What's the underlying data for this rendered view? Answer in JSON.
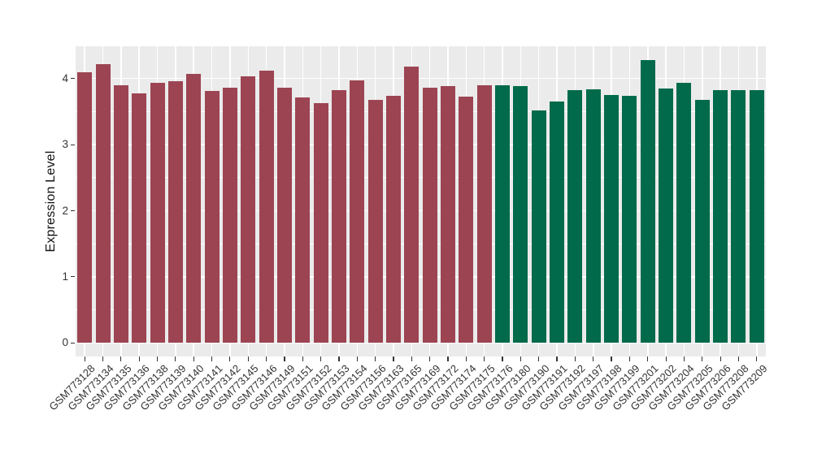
{
  "figure": {
    "background": "#FFFFFF",
    "panel_background": "#EBEBEB",
    "gridline_color": "#FFFFFF",
    "tick_color": "#333333",
    "axis_text_color": "#333333",
    "axis_title_color": "#111111"
  },
  "chart_data": {
    "type": "bar",
    "title": "",
    "xlabel": "",
    "ylabel": "Expression Level",
    "ylim": [
      -0.21,
      4.49
    ],
    "yticks": [
      0,
      1,
      2,
      3,
      4
    ],
    "grid": "white major + minor horizontal gridlines and vertical category gridlines on gray panel",
    "legend_position": "none",
    "x_label_angle_degrees": 45,
    "group_colors": {
      "group1_maroon": "#9C4452",
      "group2_green": "#006A4A"
    },
    "categories": [
      "GSM773128",
      "GSM773134",
      "GSM773135",
      "GSM773136",
      "GSM773138",
      "GSM773139",
      "GSM773140",
      "GSM773141",
      "GSM773142",
      "GSM773145",
      "GSM773146",
      "GSM773149",
      "GSM773151",
      "GSM773152",
      "GSM773153",
      "GSM773154",
      "GSM773156",
      "GSM773163",
      "GSM773165",
      "GSM773169",
      "GSM773172",
      "GSM773174",
      "GSM773175",
      "GSM773176",
      "GSM773180",
      "GSM773190",
      "GSM773191",
      "GSM773192",
      "GSM773197",
      "GSM773198",
      "GSM773199",
      "GSM773201",
      "GSM773202",
      "GSM773204",
      "GSM773205",
      "GSM773206",
      "GSM773208",
      "GSM773209"
    ],
    "values": [
      4.09,
      4.22,
      3.9,
      3.77,
      3.93,
      3.96,
      4.07,
      3.81,
      3.86,
      4.03,
      4.12,
      3.86,
      3.71,
      3.63,
      3.83,
      3.97,
      3.68,
      3.74,
      4.18,
      3.86,
      3.88,
      3.73,
      3.9,
      3.9,
      3.88,
      3.52,
      3.65,
      3.83,
      3.84,
      3.75,
      3.74,
      4.28,
      3.85,
      3.94,
      3.68,
      3.82,
      3.83,
      3.83
    ],
    "bar_colors": [
      "#9C4452",
      "#9C4452",
      "#9C4452",
      "#9C4452",
      "#9C4452",
      "#9C4452",
      "#9C4452",
      "#9C4452",
      "#9C4452",
      "#9C4452",
      "#9C4452",
      "#9C4452",
      "#9C4452",
      "#9C4452",
      "#9C4452",
      "#9C4452",
      "#9C4452",
      "#9C4452",
      "#9C4452",
      "#9C4452",
      "#9C4452",
      "#9C4452",
      "#9C4452",
      "#006A4A",
      "#006A4A",
      "#006A4A",
      "#006A4A",
      "#006A4A",
      "#006A4A",
      "#006A4A",
      "#006A4A",
      "#006A4A",
      "#006A4A",
      "#006A4A",
      "#006A4A",
      "#006A4A",
      "#006A4A",
      "#006A4A"
    ]
  }
}
